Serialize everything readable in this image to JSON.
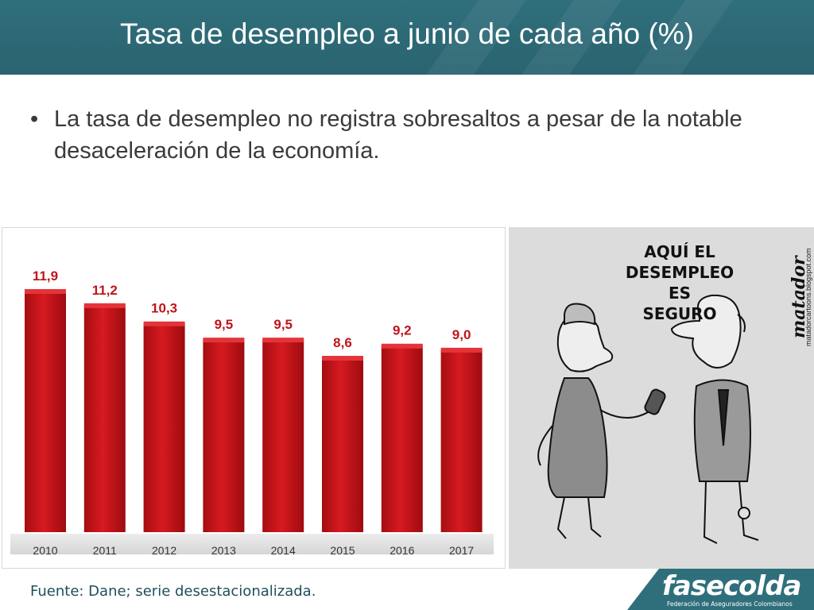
{
  "header": {
    "title": "Tasa de desempleo a junio de cada año (%)"
  },
  "bullet": {
    "marker": "•",
    "text": "La tasa de desempleo no registra sobresaltos a pesar de la notable desaceleración de la economía."
  },
  "chart_data": {
    "type": "bar",
    "categories": [
      "2010",
      "2011",
      "2012",
      "2013",
      "2014",
      "2015",
      "2016",
      "2017"
    ],
    "values": [
      11.9,
      11.2,
      10.3,
      9.5,
      9.5,
      8.6,
      9.2,
      9.0
    ],
    "data_labels": [
      "11,9",
      "11,2",
      "10,3",
      "9,5",
      "9,5",
      "8,6",
      "9,2",
      "9,0"
    ],
    "title": "",
    "xlabel": "",
    "ylabel": "",
    "grid": false,
    "bar_color": "#c8141a",
    "label_color": "#c0141a"
  },
  "cartoon": {
    "caption_lines": [
      "AQUÍ EL",
      "DESEMPLEO",
      "ES",
      "SEGURO"
    ],
    "signature": "matador",
    "url": "matadorcartoons.blogspot.com"
  },
  "footer": {
    "source": "Fuente: Dane; serie desestacionalizada.",
    "logo": "fasecolda",
    "logo_sub": "Federación de Aseguradores Colombianos"
  },
  "colors": {
    "header": "#2f6f7c",
    "text": "#3a3a3a",
    "footer_text": "#1f4f5a"
  }
}
